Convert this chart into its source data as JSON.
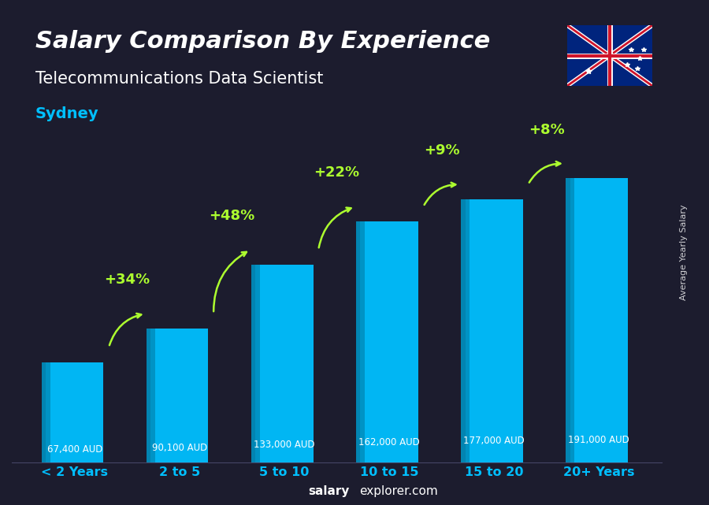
{
  "title_line1": "Salary Comparison By Experience",
  "title_line2": "Telecommunications Data Scientist",
  "city": "Sydney",
  "categories": [
    "< 2 Years",
    "2 to 5",
    "5 to 10",
    "10 to 15",
    "15 to 20",
    "20+ Years"
  ],
  "values": [
    67400,
    90100,
    133000,
    162000,
    177000,
    191000
  ],
  "value_labels": [
    "67,400 AUD",
    "90,100 AUD",
    "133,000 AUD",
    "162,000 AUD",
    "177,000 AUD",
    "191,000 AUD"
  ],
  "pct_labels": [
    "+34%",
    "+48%",
    "+22%",
    "+9%",
    "+8%"
  ],
  "bar_color": "#00BFFF",
  "bar_color_dark": "#0090C0",
  "pct_color": "#ADFF2F",
  "value_label_color": "#FFFFFF",
  "title_color": "#FFFFFF",
  "subtitle_color": "#FFFFFF",
  "city_color": "#00BFFF",
  "xlabel_color": "#00BFFF",
  "background_color": "#1a1a2e",
  "ylabel_text": "Average Yearly Salary",
  "footer_text": "salaryexplorer.com",
  "ylim": [
    0,
    220000
  ],
  "figsize": [
    9.0,
    6.41
  ],
  "dpi": 100
}
